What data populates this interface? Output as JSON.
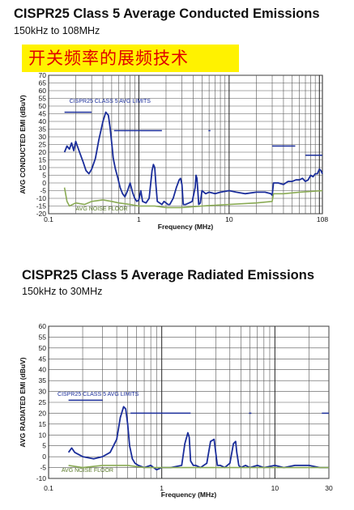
{
  "chart_data": [
    {
      "type": "line",
      "title": "CISPR25 Class 5 Average Conducted Emissions",
      "subtitle": "150kHz to 108MHz",
      "banner": "开关频率的展频技术",
      "xlabel": "Frequency (MHz)",
      "ylabel": "AVG CONDUCTED  EMI (dBuV)",
      "x_scale": "log",
      "xlim": [
        0.1,
        108
      ],
      "ylim": [
        -20,
        70
      ],
      "x_ticks": [
        {
          "v": 0.1,
          "label": "0.1"
        },
        {
          "v": 1,
          "label": "1"
        },
        {
          "v": 10,
          "label": "10"
        },
        {
          "v": 108,
          "label": "108"
        }
      ],
      "y_ticks": [
        70,
        65,
        60,
        55,
        50,
        45,
        40,
        35,
        30,
        25,
        20,
        15,
        10,
        5,
        0,
        -5,
        -10,
        -15,
        -20
      ],
      "grid": true,
      "annotations": [
        {
          "text": "CISPR25 CLASS 5 AVG LIMITS",
          "x": 0.17,
          "y": 52,
          "color": "#1a2d9a"
        },
        {
          "text": "AVG NOISE FLOOR",
          "x": 0.2,
          "y": -18,
          "color": "#5a7a2a"
        }
      ],
      "series": [
        {
          "role": "limit",
          "color": "#1a2d9a",
          "segments": [
            {
              "x": [
                0.15,
                0.3
              ],
              "y": [
                46,
                46
              ]
            },
            {
              "x": [
                0.53,
                1.8
              ],
              "y": [
                34,
                34
              ]
            },
            {
              "x": [
                5.9,
                6.2
              ],
              "y": [
                34,
                34
              ]
            },
            {
              "x": [
                30,
                54
              ],
              "y": [
                24,
                24
              ]
            },
            {
              "x": [
                70,
                108
              ],
              "y": [
                18,
                18
              ]
            }
          ]
        },
        {
          "role": "measured",
          "color": "#1a2d9a",
          "x": [
            0.15,
            0.16,
            0.17,
            0.18,
            0.19,
            0.2,
            0.22,
            0.24,
            0.26,
            0.28,
            0.3,
            0.33,
            0.36,
            0.4,
            0.43,
            0.46,
            0.48,
            0.5,
            0.52,
            0.55,
            0.58,
            0.62,
            0.66,
            0.7,
            0.75,
            0.8,
            0.85,
            0.9,
            0.95,
            1.0,
            1.05,
            1.1,
            1.2,
            1.3,
            1.4,
            1.45,
            1.5,
            1.55,
            1.6,
            1.7,
            1.8,
            1.9,
            2.0,
            2.1,
            2.2,
            2.4,
            2.6,
            2.8,
            2.9,
            3.0,
            3.1,
            3.3,
            3.6,
            3.9,
            4.2,
            4.3,
            4.4,
            4.5,
            4.6,
            4.8,
            5.0,
            5.5,
            6.0,
            7.0,
            8.0,
            10.0,
            12.0,
            15.0,
            20.0,
            25.0,
            29.0,
            30.0,
            31.0,
            35.0,
            40.0,
            45.0,
            50.0,
            55.0,
            60.0,
            65.0,
            70.0,
            75.0,
            80.0,
            85.0,
            90.0,
            95.0,
            100.0,
            104.0,
            108.0
          ],
          "y": [
            20,
            24,
            22,
            26,
            21,
            27,
            20,
            14,
            8,
            6,
            9,
            16,
            28,
            40,
            46,
            44,
            36,
            26,
            16,
            9,
            4,
            -3,
            -7,
            -9,
            -5,
            0,
            -6,
            -10,
            -12,
            -11,
            -5,
            -12,
            -13,
            -10,
            8,
            12,
            10,
            -2,
            -12,
            -13,
            -14,
            -12,
            -13,
            -14,
            -14,
            -10,
            -3,
            2,
            3,
            -1,
            -14,
            -14,
            -13,
            -12,
            -3,
            5,
            3,
            -5,
            -14,
            -13,
            -5,
            -7,
            -6,
            -7,
            -6,
            -5,
            -6,
            -7,
            -6,
            -6,
            -7,
            -8,
            0,
            0,
            -1,
            1,
            1,
            2,
            2,
            3,
            1,
            2,
            5,
            4,
            6,
            6,
            9,
            8,
            6
          ]
        },
        {
          "role": "noise-floor",
          "color": "#8aab55",
          "x": [
            0.15,
            0.16,
            0.17,
            0.2,
            0.25,
            0.3,
            0.4,
            0.5,
            0.6,
            0.8,
            1.0,
            1.5,
            2.0,
            3.0,
            5.0,
            10.0,
            20.0,
            30.0,
            31.0,
            40.0,
            60.0,
            108.0
          ],
          "y": [
            -3,
            -12,
            -15,
            -13,
            -14,
            -12,
            -11,
            -12,
            -13,
            -14,
            -15,
            -15,
            -16,
            -16,
            -15,
            -14,
            -13,
            -12,
            -7,
            -7,
            -6,
            -5
          ]
        }
      ]
    },
    {
      "type": "line",
      "title": "CISPR25 Class 5 Average Radiated Emissions",
      "subtitle": "150kHz to 30MHz",
      "xlabel": "Frequency (MHz)",
      "ylabel": "AVG RADIATED EMI (dBuV)",
      "x_scale": "log",
      "xlim": [
        0.1,
        30
      ],
      "ylim": [
        -10,
        60
      ],
      "x_ticks": [
        {
          "v": 0.1,
          "label": "0.1"
        },
        {
          "v": 1,
          "label": "1"
        },
        {
          "v": 10,
          "label": "10"
        },
        {
          "v": 30,
          "label": "30"
        }
      ],
      "y_ticks": [
        60,
        55,
        50,
        45,
        40,
        35,
        30,
        25,
        20,
        15,
        10,
        5,
        0,
        -5,
        -10
      ],
      "grid": true,
      "annotations": [
        {
          "text": "CISPR25 CLASS 5 AVG LIMITS",
          "x": 0.12,
          "y": 28,
          "color": "#1a2d9a"
        },
        {
          "text": "AVG NOISE FLOOR",
          "x": 0.13,
          "y": -7,
          "color": "#5a7a2a"
        }
      ],
      "series": [
        {
          "role": "limit",
          "color": "#1a2d9a",
          "segments": [
            {
              "x": [
                0.15,
                0.3
              ],
              "y": [
                26,
                26
              ]
            },
            {
              "x": [
                0.53,
                1.8
              ],
              "y": [
                20,
                20
              ]
            },
            {
              "x": [
                5.9,
                6.2
              ],
              "y": [
                20,
                20
              ]
            },
            {
              "x": [
                26,
                30
              ],
              "y": [
                20,
                20
              ]
            }
          ]
        },
        {
          "role": "measured",
          "color": "#1a2d9a",
          "x": [
            0.15,
            0.16,
            0.17,
            0.2,
            0.25,
            0.3,
            0.35,
            0.4,
            0.43,
            0.46,
            0.48,
            0.5,
            0.52,
            0.55,
            0.58,
            0.62,
            0.7,
            0.8,
            0.9,
            1.0,
            1.2,
            1.5,
            1.6,
            1.7,
            1.75,
            1.8,
            1.9,
            2.0,
            2.2,
            2.5,
            2.7,
            2.9,
            3.0,
            3.1,
            3.3,
            3.6,
            4.0,
            4.3,
            4.5,
            4.6,
            4.8,
            5.0,
            5.5,
            6.0,
            7.0,
            8.0,
            10.0,
            12.0,
            15.0,
            20.0,
            25.0,
            30.0
          ],
          "y": [
            2,
            4,
            2,
            0,
            -1,
            0,
            2,
            8,
            18,
            23,
            22,
            15,
            5,
            -1,
            -3,
            -4,
            -5,
            -4,
            -6,
            -5,
            -5,
            -4,
            6,
            11,
            9,
            -2,
            -4,
            -4,
            -5,
            -3,
            7,
            8,
            2,
            -4,
            -4,
            -5,
            -3,
            6,
            7,
            2,
            -4,
            -5,
            -4,
            -5,
            -4,
            -5,
            -4,
            -5,
            -4,
            -4,
            -5,
            -5
          ]
        },
        {
          "role": "noise-floor",
          "color": "#8aab55",
          "x": [
            0.15,
            0.2,
            0.3,
            0.5,
            0.7,
            1.0,
            2.0,
            5.0,
            10.0,
            20.0,
            30.0
          ],
          "y": [
            -4,
            -5,
            -4,
            -4,
            -5,
            -5,
            -5,
            -5,
            -5,
            -5,
            -5
          ]
        }
      ]
    }
  ]
}
